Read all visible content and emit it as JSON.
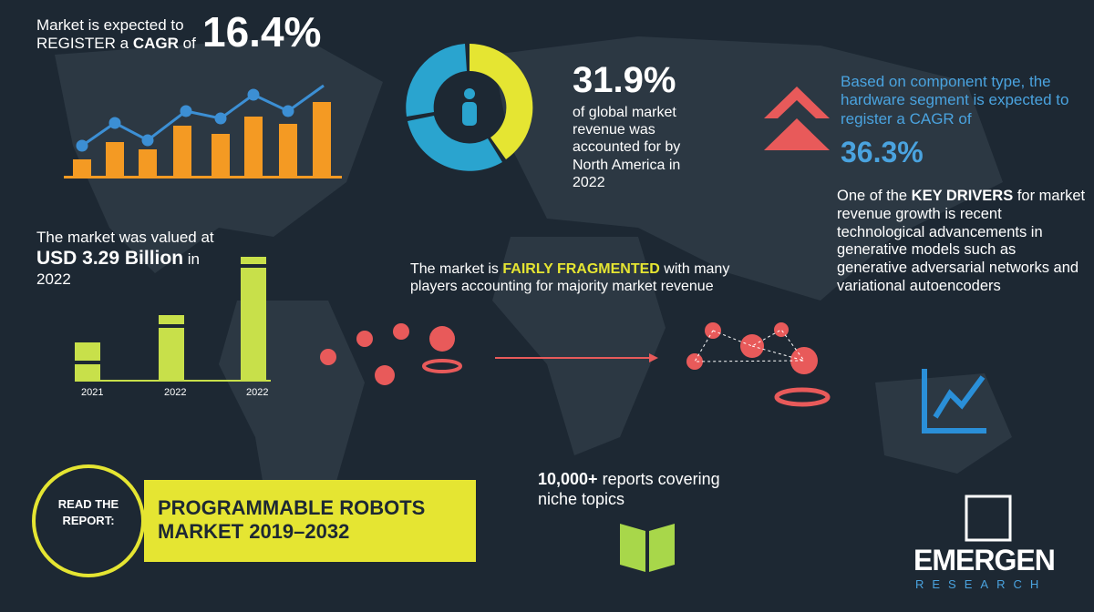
{
  "cagr": {
    "line1": "Market is expected to",
    "pre": "REGISTER a",
    "keyword": "CAGR",
    "post": "of",
    "value": "16.4%"
  },
  "share": {
    "value": "31.9%",
    "text": "of global market revenue was accounted for by North America in 2022"
  },
  "component": {
    "text": "Based on component type, the hardware segment is expected to register a CAGR of",
    "value": "36.3%"
  },
  "drivers": {
    "pre": "One of the",
    "keyword": "KEY DRIVERS",
    "post": "for market revenue growth is recent technological advancements in generative models such as generative adversarial networks and variational autoencoders"
  },
  "valuation": {
    "line1": "The market was valued at",
    "value": "USD 3.29 Billion",
    "post": "in",
    "year": "2022",
    "bar_labels": [
      "2021",
      "2022",
      "2022"
    ]
  },
  "fragmented": {
    "pre": "The market is",
    "keyword": "FAIRLY FRAGMENTED",
    "post": "with many players accounting for majority market revenue"
  },
  "reports": {
    "count": "10,000+",
    "text": "reports covering niche topics"
  },
  "read": {
    "label": "READ THE REPORT:",
    "title": "PROGRAMMABLE ROBOTS MARKET 2019–2032"
  },
  "logo": {
    "name": "EMERGEN",
    "sub": "RESEARCH"
  }
}
